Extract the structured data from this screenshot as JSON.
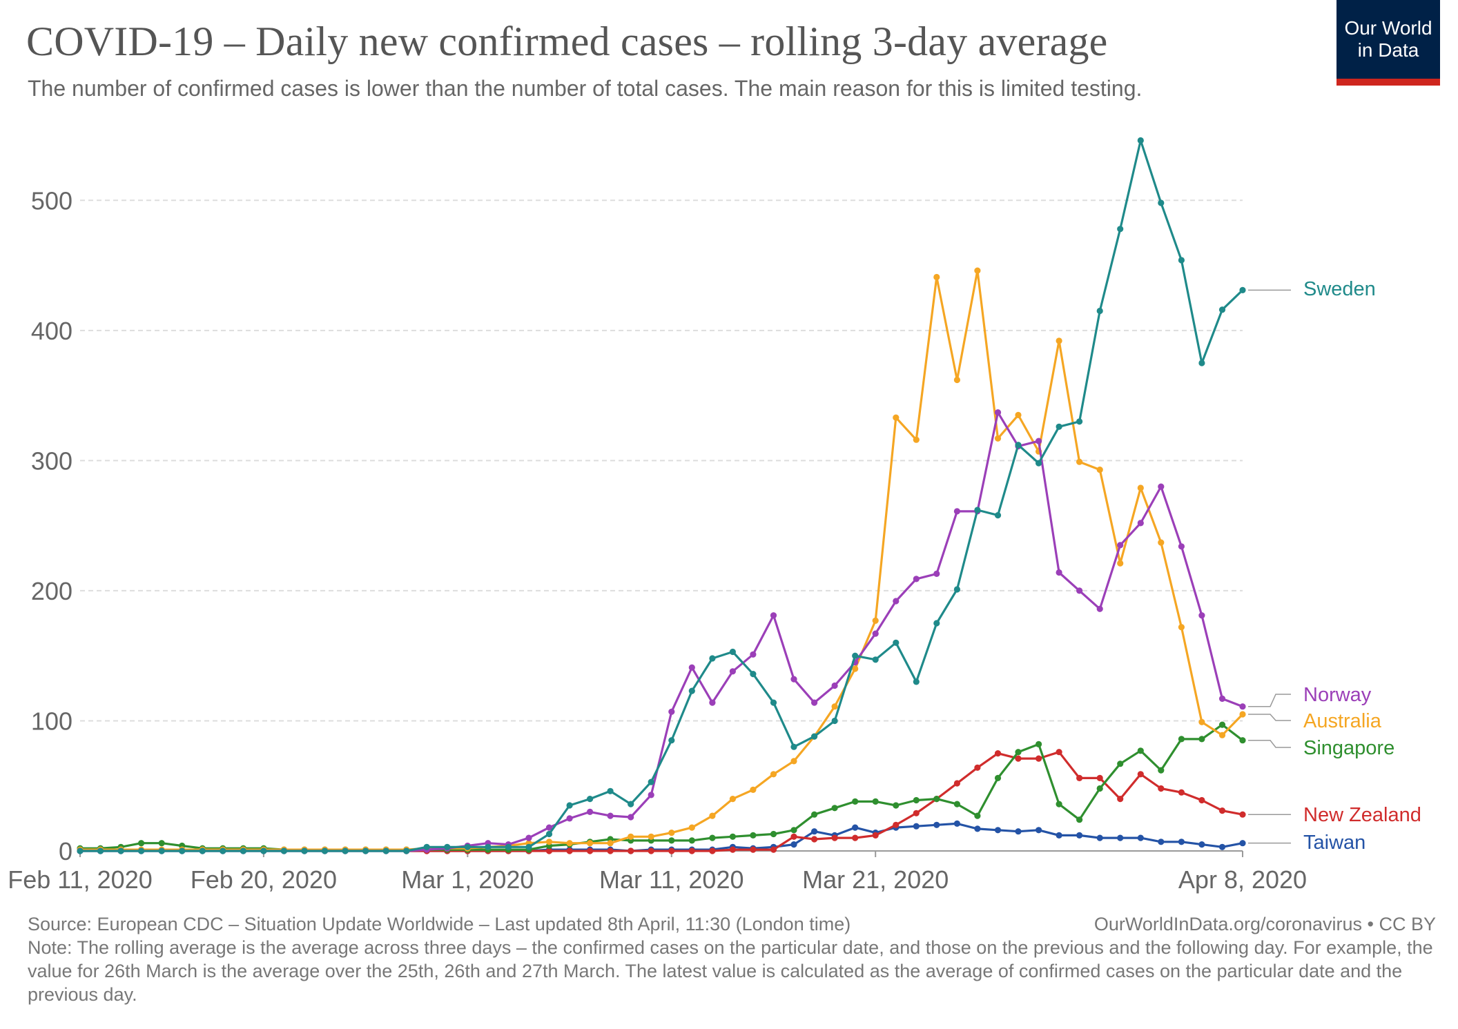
{
  "header": {
    "title": "COVID-19 – Daily new confirmed cases – rolling 3-day average",
    "subtitle": "The number of confirmed cases is lower than the number of total cases. The main reason for this is limited testing.",
    "logo_line1": "Our World",
    "logo_line2": "in Data",
    "logo_bg": "#002147",
    "logo_accent": "#ce261e"
  },
  "footer": {
    "source": "Source: European CDC – Situation Update Worldwide – Last updated 8th April, 11:30 (London time)",
    "credit": "OurWorldInData.org/coronavirus • CC BY",
    "note": "Note: The rolling average is the average across three days – the confirmed cases on the particular date, and those on the previous and the following day. For example, the value for 26th March is the average over the 25th, 26th and 27th March. The latest value is calculated as the average of confirmed cases on the particular date and the previous day."
  },
  "chart_data": {
    "type": "line",
    "x_start": "2020-02-11",
    "x_end": "2020-04-08",
    "x_ticks": [
      {
        "date": "2020-02-11",
        "label": "Feb 11, 2020"
      },
      {
        "date": "2020-02-20",
        "label": "Feb 20, 2020"
      },
      {
        "date": "2020-03-01",
        "label": "Mar 1, 2020"
      },
      {
        "date": "2020-03-11",
        "label": "Mar 11, 2020"
      },
      {
        "date": "2020-03-21",
        "label": "Mar 21, 2020"
      },
      {
        "date": "2020-04-08",
        "label": "Apr 8, 2020"
      }
    ],
    "ylim": [
      0,
      550
    ],
    "y_ticks": [
      0,
      100,
      200,
      300,
      400,
      500
    ],
    "grid": true,
    "legend": "right, labels at line ends",
    "series": [
      {
        "name": "Sweden",
        "color": "#1f8a8a",
        "values": [
          0,
          0,
          0,
          0,
          0,
          0,
          0,
          0,
          0,
          0,
          0,
          0,
          0,
          0,
          0,
          0,
          0,
          3,
          3,
          3,
          3,
          3,
          3,
          13,
          35,
          40,
          46,
          36,
          53,
          85,
          123,
          148,
          153,
          136,
          114,
          80,
          88,
          100,
          150,
          147,
          160,
          130,
          175,
          201,
          262,
          258,
          312,
          298,
          326,
          330,
          415,
          478,
          546,
          498,
          454,
          375,
          416,
          431
        ]
      },
      {
        "name": "Norway",
        "color": "#9b3fb8",
        "values": [
          0,
          0,
          0,
          0,
          0,
          0,
          0,
          0,
          0,
          0,
          0,
          0,
          0,
          0,
          0,
          0,
          0,
          1,
          2,
          4,
          6,
          5,
          10,
          18,
          25,
          30,
          27,
          26,
          43,
          107,
          141,
          114,
          138,
          151,
          181,
          132,
          114,
          127,
          145,
          167,
          192,
          209,
          213,
          261,
          261,
          337,
          311,
          315,
          214,
          200,
          186,
          235,
          252,
          280,
          234,
          181,
          117,
          111
        ]
      },
      {
        "name": "Australia",
        "color": "#f5a623",
        "values": [
          1,
          1,
          1,
          1,
          1,
          1,
          1,
          1,
          1,
          1,
          1,
          1,
          1,
          1,
          1,
          1,
          1,
          2,
          2,
          2,
          3,
          4,
          6,
          7,
          6,
          6,
          6,
          11,
          11,
          14,
          18,
          27,
          40,
          47,
          59,
          69,
          88,
          111,
          140,
          177,
          333,
          316,
          441,
          362,
          446,
          317,
          335,
          307,
          392,
          299,
          293,
          221,
          279,
          237,
          172,
          99,
          89,
          105
        ]
      },
      {
        "name": "Singapore",
        "color": "#2f8f2f",
        "values": [
          2,
          2,
          3,
          6,
          6,
          4,
          2,
          2,
          2,
          2,
          1,
          1,
          1,
          1,
          1,
          1,
          1,
          1,
          1,
          1,
          1,
          1,
          1,
          4,
          5,
          7,
          9,
          8,
          8,
          8,
          8,
          10,
          11,
          12,
          13,
          16,
          28,
          33,
          38,
          38,
          35,
          39,
          40,
          36,
          27,
          56,
          76,
          82,
          36,
          24,
          48,
          67,
          77,
          62,
          86,
          86,
          97,
          85
        ]
      },
      {
        "name": "New Zealand",
        "color": "#d02c2c",
        "values": [
          null,
          null,
          null,
          null,
          null,
          null,
          null,
          null,
          null,
          null,
          null,
          null,
          null,
          null,
          null,
          null,
          0,
          0,
          0,
          0,
          0,
          0,
          0,
          0,
          0,
          0,
          0,
          0,
          0,
          0,
          0,
          0,
          1,
          1,
          1,
          11,
          9,
          10,
          10,
          12,
          20,
          29,
          40,
          52,
          64,
          75,
          71,
          71,
          76,
          56,
          56,
          40,
          59,
          48,
          45,
          39,
          31,
          28
        ]
      },
      {
        "name": "Taiwan",
        "color": "#2453a6",
        "values": [
          0,
          0,
          0,
          0,
          0,
          0,
          0,
          0,
          0,
          0,
          0,
          0,
          0,
          0,
          0,
          0,
          0,
          0,
          0,
          0,
          0,
          0,
          0,
          1,
          1,
          1,
          1,
          0,
          1,
          1,
          1,
          1,
          3,
          2,
          3,
          5,
          15,
          12,
          18,
          14,
          18,
          19,
          20,
          21,
          17,
          16,
          15,
          16,
          12,
          12,
          10,
          10,
          10,
          7,
          7,
          5,
          3,
          6
        ]
      }
    ]
  }
}
